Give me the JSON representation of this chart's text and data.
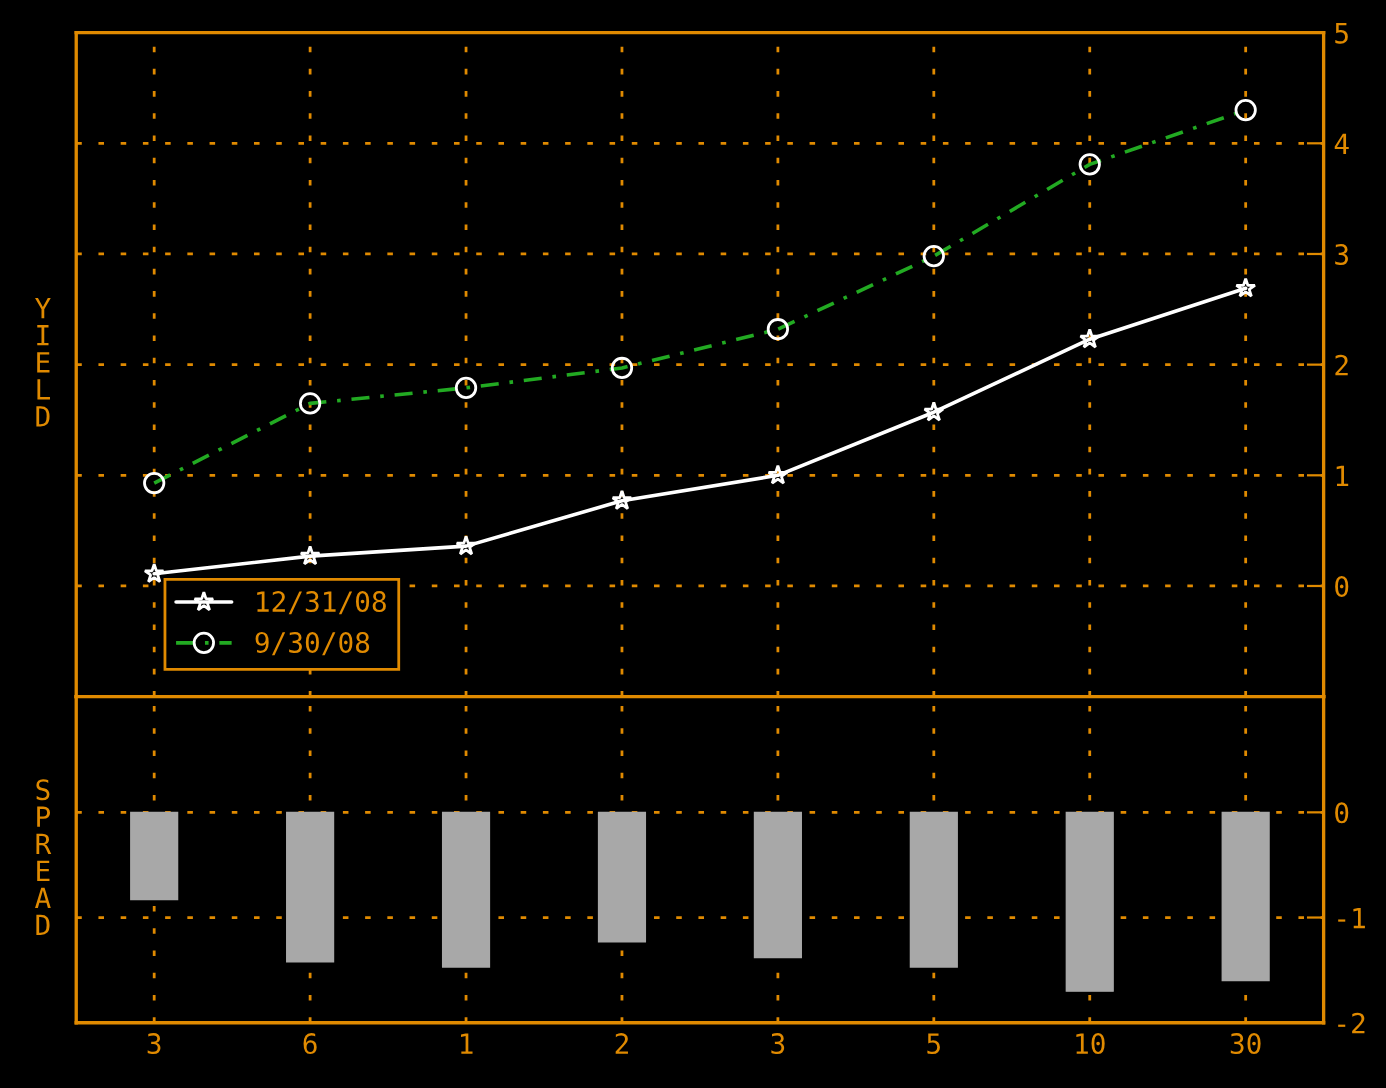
{
  "chart_data": [
    {
      "type": "line",
      "ylabel": "YIELD",
      "categories": [
        "3",
        "6",
        "1",
        "2",
        "3",
        "5",
        "10",
        "30"
      ],
      "ylim": [
        -1,
        5
      ],
      "yticks": [
        0,
        1,
        2,
        3,
        4,
        5
      ],
      "grid": true,
      "legend": "bottom left",
      "tick_labels": "y",
      "series": [
        {
          "name": "12/31/08",
          "color": "#ffffff",
          "marker": "star",
          "line_style": "solid",
          "values": [
            0.11,
            0.27,
            0.36,
            0.77,
            1.0,
            1.57,
            2.23,
            2.69
          ]
        },
        {
          "name": "9/30/08",
          "color": "#22aa22",
          "marker": "circle",
          "line_style": "dashed",
          "values": [
            0.93,
            1.65,
            1.79,
            1.97,
            2.32,
            2.98,
            3.81,
            4.3
          ]
        }
      ]
    },
    {
      "type": "bar",
      "ylabel": "SPREAD",
      "categories": [
        "3",
        "6",
        "1",
        "2",
        "3",
        "5",
        "10",
        "30"
      ],
      "ylim": [
        -2,
        1.1
      ],
      "yticks": [
        0,
        -1,
        -2
      ],
      "grid": true,
      "series": [
        {
          "color": "#a8a8a8",
          "values": [
            -0.83,
            -1.42,
            -1.47,
            -1.23,
            -1.38,
            -1.47,
            -1.7,
            -1.6
          ]
        }
      ]
    }
  ]
}
